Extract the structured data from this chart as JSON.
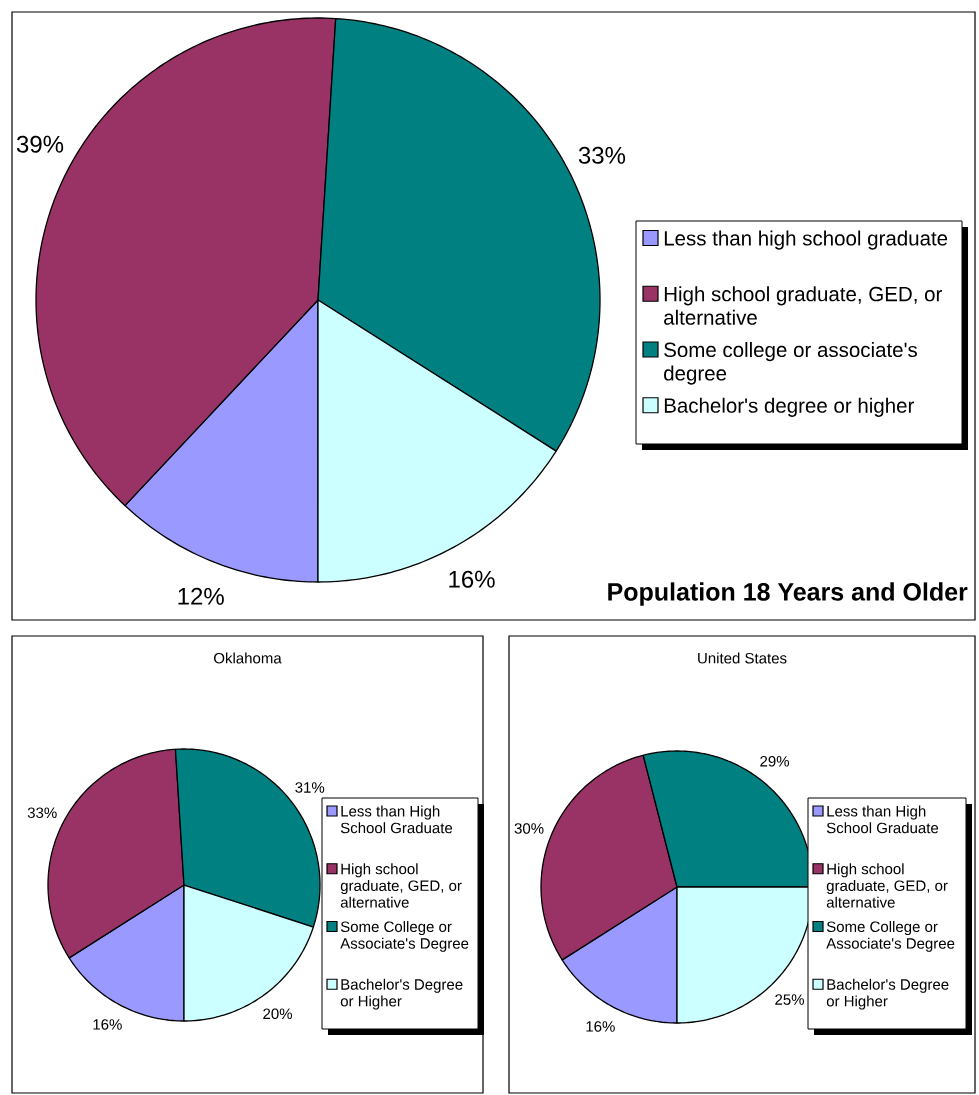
{
  "chart_data": [
    {
      "type": "pie",
      "title": "Population 18 Years and Older",
      "categories": [
        "Less than high school graduate",
        "High school graduate, GED, or alternative",
        "Some college or associate's degree",
        "Bachelor's degree or higher"
      ],
      "values": [
        12,
        39,
        33,
        16
      ],
      "colors": [
        "#9999ff",
        "#993366",
        "#008080",
        "#ccffff"
      ],
      "value_labels": [
        "12%",
        "39%",
        "33%",
        "16%"
      ],
      "legend": "right"
    },
    {
      "type": "pie",
      "title": "Oklahoma",
      "categories": [
        "Less than High School Graduate",
        "High school graduate, GED, or alternative",
        "Some College or Associate's Degree",
        "Bachelor's Degree or Higher"
      ],
      "values": [
        16,
        33,
        31,
        20
      ],
      "colors": [
        "#9999ff",
        "#993366",
        "#008080",
        "#ccffff"
      ],
      "value_labels": [
        "16%",
        "33%",
        "31%",
        "20%"
      ],
      "legend": "right"
    },
    {
      "type": "pie",
      "title": "United States",
      "categories": [
        "Less than High School Graduate",
        "High school graduate, GED, or alternative",
        "Some College or Associate's Degree",
        "Bachelor's Degree or Higher"
      ],
      "values": [
        16,
        30,
        29,
        25
      ],
      "colors": [
        "#9999ff",
        "#993366",
        "#008080",
        "#ccffff"
      ],
      "value_labels": [
        "16%",
        "30%",
        "29%",
        "25%"
      ],
      "legend": "right"
    }
  ]
}
